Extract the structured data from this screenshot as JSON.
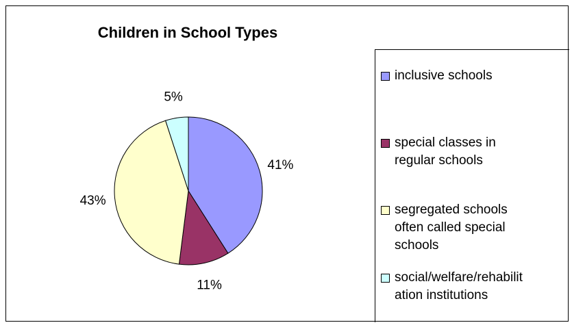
{
  "chart_data": {
    "type": "pie",
    "title": "Children in School Types",
    "legend_position": "right",
    "slices": [
      {
        "label": "inclusive schools",
        "value": 41,
        "value_label": "41%",
        "color": "#9999ff"
      },
      {
        "label": "special classes in regular schools",
        "value": 11,
        "value_label": "11%",
        "color": "#993366"
      },
      {
        "label": "segregated schools often called special schools",
        "value": 43,
        "value_label": "43%",
        "color": "#ffffcc"
      },
      {
        "label": "social/welfare/rehabilitation institutions",
        "value": 5,
        "value_label": "5%",
        "color": "#ccffff"
      }
    ]
  },
  "legend": {
    "items": [
      {
        "line1": "inclusive schools",
        "line2": "",
        "line3": ""
      },
      {
        "line1": "special classes in",
        "line2": "regular schools",
        "line3": ""
      },
      {
        "line1": "segregated schools",
        "line2": "often called special",
        "line3": "schools"
      },
      {
        "line1": "social/welfare/rehabilit",
        "line2": "ation institutions",
        "line3": ""
      }
    ]
  }
}
